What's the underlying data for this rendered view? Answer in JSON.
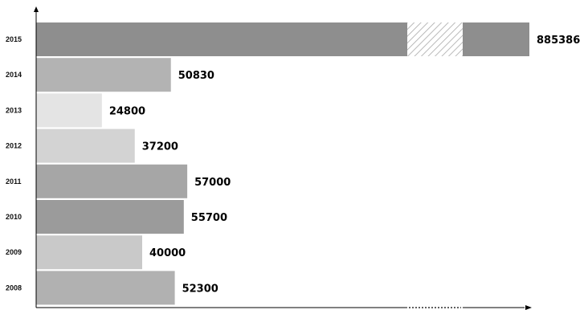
{
  "chart_data": {
    "type": "bar",
    "orientation": "horizontal",
    "title": "",
    "xlabel": "",
    "ylabel": "",
    "categories": [
      "2015",
      "2014",
      "2013",
      "2012",
      "2011",
      "2010",
      "2009",
      "2008"
    ],
    "values": [
      885386,
      50830,
      24800,
      37200,
      57000,
      55700,
      40000,
      52300
    ],
    "colors": [
      "#8e8e8e",
      "#b3b3b3",
      "#e4e4e4",
      "#d3d3d3",
      "#a6a6a6",
      "#9b9b9b",
      "#c9c9c9",
      "#b1b1b1"
    ],
    "axis_break": true,
    "grid": false,
    "legend": "none"
  }
}
